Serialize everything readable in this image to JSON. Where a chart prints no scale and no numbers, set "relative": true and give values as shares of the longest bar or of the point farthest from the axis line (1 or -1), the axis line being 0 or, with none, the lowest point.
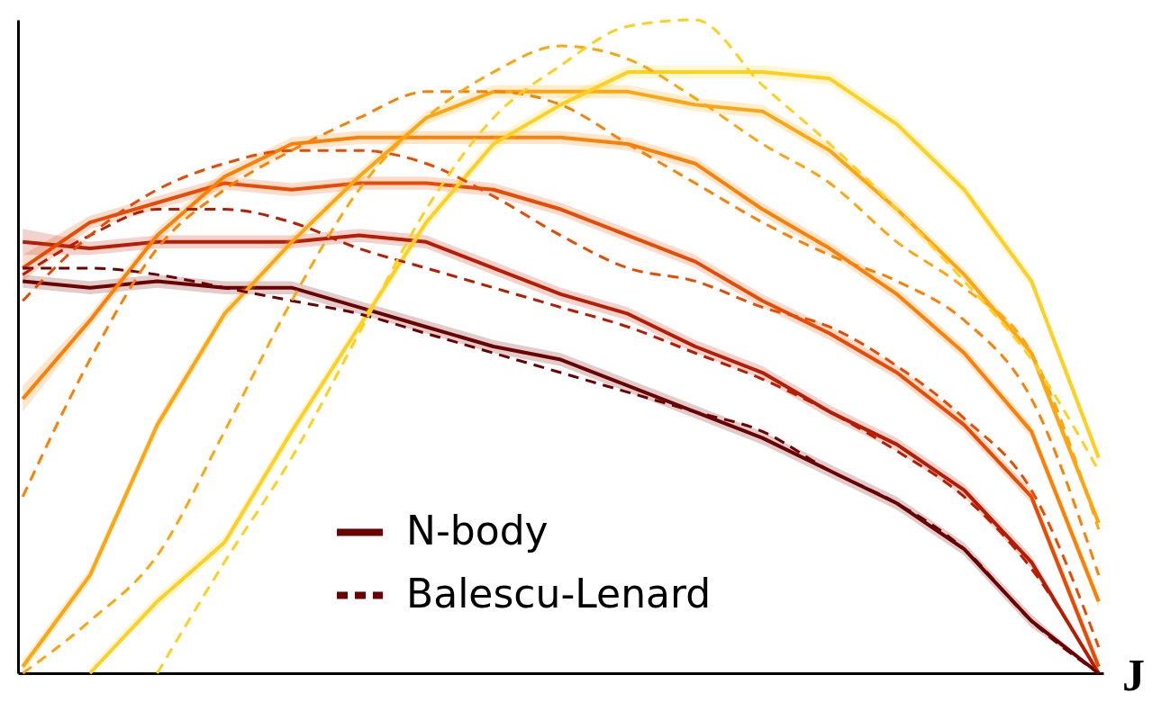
{
  "chart_data": {
    "type": "line",
    "relative": true,
    "xlabel": "J",
    "legend": "bottom",
    "categories": [
      null,
      null,
      null,
      null,
      null,
      null,
      null,
      null,
      null,
      null,
      null,
      null,
      null,
      null,
      null,
      null,
      null
    ],
    "series": [
      {
        "name": "N-body",
        "color": "#6b0000",
        "line_style": "solid",
        "values": [
          0.6,
          0.59,
          0.6,
          0.59,
          0.59,
          0.56,
          0.53,
          0.5,
          0.48,
          0.44,
          0.4,
          0.36,
          0.31,
          0.26,
          0.19,
          0.08,
          0
        ],
        "lower": [
          0.59,
          0.58,
          0.59,
          0.58,
          0.58,
          0.55,
          0.52,
          0.49,
          0.47,
          0.43,
          0.39,
          0.35,
          0.3,
          0.25,
          0.18,
          0.07,
          0
        ],
        "upper": [
          0.61,
          0.6,
          0.61,
          0.6,
          0.6,
          0.57,
          0.54,
          0.51,
          0.49,
          0.45,
          0.41,
          0.37,
          0.32,
          0.27,
          0.2,
          0.09,
          0
        ]
      },
      {
        "color": "#b71c00",
        "line_style": "solid",
        "values": [
          0.66,
          0.65,
          0.66,
          0.66,
          0.66,
          0.67,
          0.66,
          0.62,
          0.58,
          0.55,
          0.5,
          0.46,
          0.4,
          0.35,
          0.28,
          0.17,
          0
        ],
        "lower": [
          0.64,
          0.64,
          0.65,
          0.65,
          0.65,
          0.66,
          0.65,
          0.61,
          0.57,
          0.54,
          0.49,
          0.45,
          0.39,
          0.34,
          0.27,
          0.16,
          0
        ],
        "upper": [
          0.68,
          0.66,
          0.67,
          0.67,
          0.67,
          0.68,
          0.67,
          0.63,
          0.59,
          0.56,
          0.51,
          0.47,
          0.41,
          0.36,
          0.29,
          0.18,
          0
        ]
      },
      {
        "color": "#e84a00",
        "line_style": "solid",
        "values": [
          0.62,
          0.69,
          0.72,
          0.75,
          0.74,
          0.75,
          0.75,
          0.74,
          0.71,
          0.67,
          0.63,
          0.57,
          0.52,
          0.46,
          0.38,
          0.27,
          0.01
        ],
        "lower": [
          0.6,
          0.68,
          0.71,
          0.74,
          0.73,
          0.74,
          0.74,
          0.73,
          0.7,
          0.66,
          0.62,
          0.56,
          0.51,
          0.45,
          0.37,
          0.26,
          0
        ],
        "upper": [
          0.64,
          0.7,
          0.73,
          0.76,
          0.75,
          0.76,
          0.76,
          0.75,
          0.72,
          0.68,
          0.64,
          0.58,
          0.53,
          0.47,
          0.39,
          0.28,
          0.02
        ]
      },
      {
        "color": "#ff7f00",
        "line_style": "solid",
        "values": [
          0.42,
          0.54,
          0.67,
          0.76,
          0.81,
          0.82,
          0.82,
          0.82,
          0.82,
          0.81,
          0.78,
          0.71,
          0.65,
          0.58,
          0.49,
          0.37,
          0.11
        ],
        "lower": [
          0.4,
          0.53,
          0.66,
          0.75,
          0.8,
          0.81,
          0.81,
          0.81,
          0.81,
          0.8,
          0.77,
          0.7,
          0.64,
          0.57,
          0.48,
          0.36,
          0.1
        ],
        "upper": [
          0.44,
          0.55,
          0.68,
          0.77,
          0.82,
          0.83,
          0.83,
          0.83,
          0.83,
          0.82,
          0.79,
          0.72,
          0.66,
          0.59,
          0.5,
          0.38,
          0.12
        ]
      },
      {
        "color": "#ffa60f",
        "line_style": "solid",
        "values": [
          0.01,
          0.15,
          0.38,
          0.55,
          0.66,
          0.76,
          0.85,
          0.89,
          0.89,
          0.89,
          0.87,
          0.86,
          0.8,
          0.71,
          0.61,
          0.49,
          0.23
        ],
        "lower": [
          0,
          0.14,
          0.37,
          0.54,
          0.65,
          0.75,
          0.84,
          0.88,
          0.88,
          0.88,
          0.86,
          0.85,
          0.79,
          0.7,
          0.6,
          0.48,
          0.22
        ],
        "upper": [
          0.02,
          0.16,
          0.39,
          0.56,
          0.67,
          0.77,
          0.86,
          0.9,
          0.9,
          0.9,
          0.88,
          0.87,
          0.81,
          0.72,
          0.62,
          0.5,
          0.24
        ]
      },
      {
        "color": "#ffd020",
        "line_style": "solid",
        "values": [
          null,
          0,
          0.11,
          0.2,
          0.37,
          0.53,
          0.69,
          0.81,
          0.87,
          0.92,
          0.92,
          0.92,
          0.91,
          0.84,
          0.74,
          0.6,
          0.33
        ],
        "lower": [
          null,
          0,
          0.1,
          0.19,
          0.36,
          0.52,
          0.68,
          0.8,
          0.86,
          0.91,
          0.91,
          0.91,
          0.9,
          0.83,
          0.73,
          0.59,
          0.32
        ],
        "upper": [
          null,
          0.01,
          0.12,
          0.21,
          0.38,
          0.54,
          0.7,
          0.82,
          0.88,
          0.93,
          0.93,
          0.93,
          0.92,
          0.85,
          0.75,
          0.61,
          0.34
        ]
      },
      {
        "name": "Balescu-Lenard",
        "color": "#6b0000",
        "line_style": "dashed",
        "values": [
          0.62,
          0.62,
          0.61,
          0.59,
          0.57,
          0.55,
          0.52,
          0.49,
          0.46,
          0.43,
          0.4,
          0.37,
          0.31,
          0.26,
          0.19,
          0.08,
          0
        ]
      },
      {
        "color": "#b71c00",
        "line_style": "dashed",
        "values": [
          0.61,
          0.67,
          0.71,
          0.71,
          0.69,
          0.65,
          0.62,
          0.59,
          0.56,
          0.53,
          0.49,
          0.45,
          0.4,
          0.34,
          0.27,
          0.16,
          0
        ]
      },
      {
        "color": "#e84a00",
        "line_style": "dashed",
        "values": [
          0.57,
          0.67,
          0.74,
          0.78,
          0.8,
          0.8,
          0.78,
          0.73,
          0.67,
          0.62,
          0.6,
          0.56,
          0.53,
          0.47,
          0.39,
          0.28,
          0.04
        ]
      },
      {
        "color": "#ff7f00",
        "line_style": "dashed",
        "values": [
          0.27,
          0.48,
          0.65,
          0.74,
          0.8,
          0.85,
          0.89,
          0.89,
          0.87,
          0.81,
          0.75,
          0.69,
          0.64,
          0.6,
          0.54,
          0.42,
          0.15
        ]
      },
      {
        "color": "#ffa60f",
        "line_style": "dashed",
        "values": [
          0,
          0.08,
          0.18,
          0.37,
          0.57,
          0.74,
          0.85,
          0.92,
          0.96,
          0.94,
          0.88,
          0.81,
          0.75,
          0.66,
          0.59,
          0.49,
          0.22
        ]
      },
      {
        "color": "#ffd020",
        "line_style": "dashed",
        "values": [
          null,
          null,
          0,
          0.17,
          0.33,
          0.52,
          0.71,
          0.85,
          0.93,
          0.99,
          1,
          0.9,
          0.81,
          0.71,
          0.6,
          0.48,
          0.31
        ]
      }
    ]
  }
}
